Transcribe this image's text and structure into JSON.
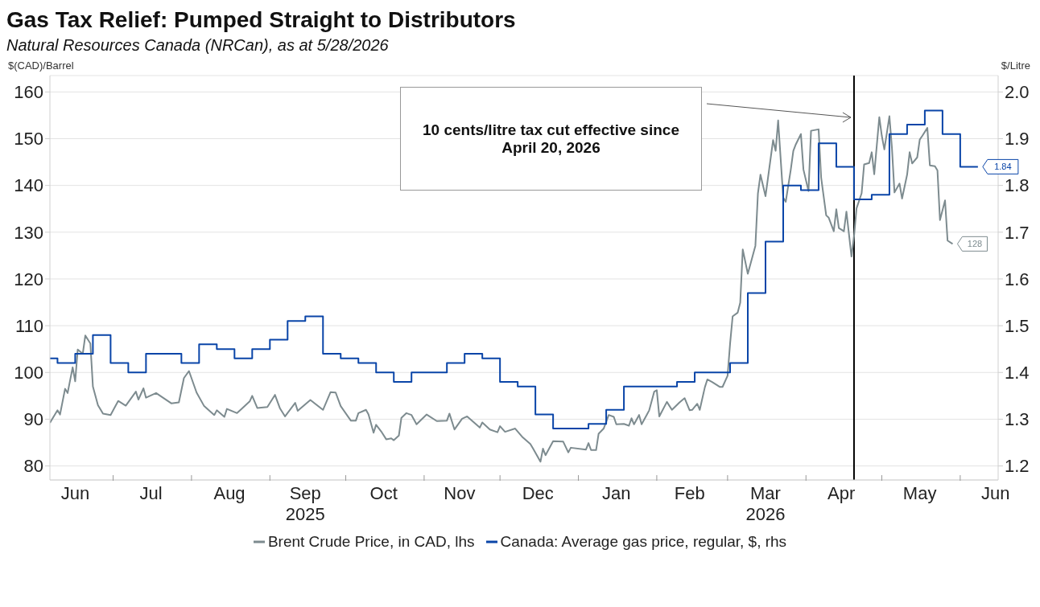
{
  "chart_data": {
    "type": "line",
    "title": "Gas Tax Relief: Pumped Straight to Distributors",
    "subtitle": "Natural Resources Canada (NRCan), as at 5/28/2026",
    "ylabel": "$(CAD)/Barrel",
    "y2label": "$/Litre",
    "annotations": [
      "10 cents/litre tax cut effective since April 20, 2026"
    ],
    "xlim": [
      "2025-06-06",
      "2026-06-16"
    ],
    "xticks": [
      {
        "value": "2025-06-16",
        "label": "Jun"
      },
      {
        "value": "2025-07-01",
        "label": null
      },
      {
        "value": "2025-07-16",
        "label": "Jul"
      },
      {
        "value": "2025-08-01",
        "label": null
      },
      {
        "value": "2025-08-16",
        "label": "Aug"
      },
      {
        "value": "2025-09-01",
        "label": null
      },
      {
        "value": "2025-09-15",
        "label": "Sep\n2025"
      },
      {
        "value": "2025-10-01",
        "label": null
      },
      {
        "value": "2025-10-16",
        "label": "Oct"
      },
      {
        "value": "2025-11-01",
        "label": null
      },
      {
        "value": "2025-11-15",
        "label": "Nov"
      },
      {
        "value": "2025-12-01",
        "label": null
      },
      {
        "value": "2025-12-16",
        "label": "Dec"
      },
      {
        "value": "2026-01-01",
        "label": null
      },
      {
        "value": "2026-01-16",
        "label": "Jan"
      },
      {
        "value": "2026-02-01",
        "label": null
      },
      {
        "value": "2026-02-14",
        "label": "Feb"
      },
      {
        "value": "2026-03-01",
        "label": null
      },
      {
        "value": "2026-03-16",
        "label": "Mar\n2026"
      },
      {
        "value": "2026-04-01",
        "label": null
      },
      {
        "value": "2026-04-15",
        "label": "Apr"
      },
      {
        "value": "2026-05-01",
        "label": null
      },
      {
        "value": "2026-05-16",
        "label": "May"
      },
      {
        "value": "2026-06-01",
        "label": null
      },
      {
        "value": "2026-06-15",
        "label": "Jun"
      }
    ],
    "ylim": [
      77,
      163.5
    ],
    "yticks": [
      80,
      90,
      100,
      110,
      120,
      130,
      140,
      150,
      160
    ],
    "y2lim": [
      1.17,
      2.035
    ],
    "y2ticks": [
      1.2,
      1.3,
      1.4,
      1.5,
      1.6,
      1.7,
      1.8,
      1.9,
      {
        "value": 2.0,
        "label": "2.0"
      }
    ],
    "grid": "y",
    "legend": "bottom",
    "ref_lines": [
      {
        "axis": "x",
        "value": "2026-04-20",
        "color": "#000000"
      }
    ],
    "series": [
      {
        "name": "Brent Crude Price, in CAD, lhs",
        "type": "line",
        "color": "#7d8b8f",
        "x": [
          "2025-06-06",
          "2025-06-09",
          "2025-06-10",
          "2025-06-12",
          "2025-06-13",
          "2025-06-15",
          "2025-06-16",
          "2025-06-17",
          "2025-06-19",
          "2025-06-20",
          "2025-06-22",
          "2025-06-23",
          "2025-06-25",
          "2025-06-27",
          "2025-06-30",
          "2025-07-03",
          "2025-07-06",
          "2025-07-10",
          "2025-07-11",
          "2025-07-13",
          "2025-07-14",
          "2025-07-18",
          "2025-07-24",
          "2025-07-27",
          "2025-07-29",
          "2025-07-31",
          "2025-08-03",
          "2025-08-06",
          "2025-08-10",
          "2025-08-11",
          "2025-08-14",
          "2025-08-15",
          "2025-08-19",
          "2025-08-24",
          "2025-08-25",
          "2025-08-27",
          "2025-08-31",
          "2025-09-03",
          "2025-09-05",
          "2025-09-07",
          "2025-09-11",
          "2025-09-12",
          "2025-09-17",
          "2025-09-22",
          "2025-09-25",
          "2025-09-27",
          "2025-09-29",
          "2025-10-03",
          "2025-10-05",
          "2025-10-06",
          "2025-10-09",
          "2025-10-10",
          "2025-10-12",
          "2025-10-13",
          "2025-10-15",
          "2025-10-17",
          "2025-10-19",
          "2025-10-20",
          "2025-10-22",
          "2025-10-23",
          "2025-10-25",
          "2025-10-27",
          "2025-10-29",
          "2025-11-02",
          "2025-11-06",
          "2025-11-10",
          "2025-11-11",
          "2025-11-13",
          "2025-11-16",
          "2025-11-18",
          "2025-11-23",
          "2025-11-24",
          "2025-11-27",
          "2025-11-30",
          "2025-12-01",
          "2025-12-03",
          "2025-12-07",
          "2025-12-10",
          "2025-12-13",
          "2025-12-14",
          "2025-12-17",
          "2025-12-18",
          "2025-12-19",
          "2025-12-22",
          "2025-12-26",
          "2025-12-28",
          "2025-12-29",
          "2026-01-04",
          "2026-01-05",
          "2026-01-06",
          "2026-01-08",
          "2026-01-09",
          "2026-01-11",
          "2026-01-13",
          "2026-01-15",
          "2026-01-16",
          "2026-01-19",
          "2026-01-21",
          "2026-01-22",
          "2026-01-23",
          "2026-01-25",
          "2026-01-26",
          "2026-01-28",
          "2026-01-29",
          "2026-01-31",
          "2026-02-01",
          "2026-02-02",
          "2026-02-05",
          "2026-02-07",
          "2026-02-10",
          "2026-02-12",
          "2026-02-14",
          "2026-02-15",
          "2026-02-17",
          "2026-02-18",
          "2026-02-20",
          "2026-02-21",
          "2026-02-23",
          "2026-02-26",
          "2026-02-27",
          "2026-03-01",
          "2026-03-02",
          "2026-03-03",
          "2026-03-05",
          "2026-03-06",
          "2026-03-07",
          "2026-03-09",
          "2026-03-10",
          "2026-03-12",
          "2026-03-13",
          "2026-03-14",
          "2026-03-16",
          "2026-03-17",
          "2026-03-19",
          "2026-03-20",
          "2026-03-21",
          "2026-03-23",
          "2026-03-24",
          "2026-03-26",
          "2026-03-27",
          "2026-03-28",
          "2026-03-30",
          "2026-03-31",
          "2026-04-02",
          "2026-04-03",
          "2026-04-06",
          "2026-04-07",
          "2026-04-09",
          "2026-04-10",
          "2026-04-12",
          "2026-04-13",
          "2026-04-14",
          "2026-04-16",
          "2026-04-17",
          "2026-04-19",
          "2026-04-20",
          "2026-04-21",
          "2026-04-23",
          "2026-04-24",
          "2026-04-26",
          "2026-04-27",
          "2026-04-28",
          "2026-04-30",
          "2026-05-01",
          "2026-05-02",
          "2026-05-04",
          "2026-05-05",
          "2026-05-06",
          "2026-05-08",
          "2026-05-09",
          "2026-05-11",
          "2026-05-12",
          "2026-05-13",
          "2026-05-15",
          "2026-05-16",
          "2026-05-17",
          "2026-05-19",
          "2026-05-20",
          "2026-05-22",
          "2026-05-23",
          "2026-05-24",
          "2026-05-26",
          "2026-05-27",
          "2026-05-29"
        ],
        "values": [
          89.2,
          91.9,
          91.0,
          96.5,
          95.6,
          101.1,
          98.1,
          104.9,
          104.0,
          107.9,
          106.2,
          97.0,
          93.0,
          91.2,
          90.9,
          93.9,
          92.9,
          95.9,
          94.2,
          96.6,
          94.6,
          95.6,
          93.4,
          93.6,
          98.8,
          100.3,
          95.7,
          92.8,
          90.9,
          91.9,
          90.5,
          92.2,
          91.3,
          93.8,
          95.0,
          92.4,
          92.6,
          95.2,
          92.3,
          90.6,
          93.5,
          91.8,
          94.1,
          92.0,
          95.8,
          95.7,
          92.8,
          89.7,
          89.7,
          91.3,
          92.0,
          91.0,
          87.1,
          88.8,
          87.4,
          85.7,
          85.9,
          85.5,
          86.5,
          90.3,
          91.3,
          90.9,
          88.9,
          91.0,
          89.6,
          89.7,
          91.2,
          87.8,
          90.1,
          90.6,
          88.2,
          89.3,
          87.8,
          87.2,
          88.5,
          87.3,
          88.0,
          86.1,
          84.7,
          83.8,
          80.9,
          83.7,
          82.3,
          85.3,
          85.2,
          82.9,
          83.9,
          83.5,
          84.9,
          83.4,
          83.4,
          86.9,
          88.0,
          90.9,
          90.5,
          88.9,
          89.0,
          88.6,
          90.2,
          88.9,
          90.9,
          88.9,
          90.9,
          91.9,
          95.9,
          96.2,
          90.6,
          93.7,
          92.0,
          93.6,
          94.5,
          91.9,
          92.0,
          93.3,
          92.0,
          96.8,
          98.5,
          97.9,
          96.9,
          96.9,
          99.3,
          106.2,
          112.0,
          112.8,
          114.9,
          126.3,
          121.1,
          123.1,
          127.1,
          138.3,
          142.3,
          137.7,
          141.7,
          149.7,
          147.4,
          153.9,
          137.4,
          136.5,
          143.4,
          147.4,
          148.8,
          151.0,
          143.4,
          138.8,
          151.7,
          152.0,
          141.7,
          133.6,
          133.1,
          130.2,
          134.9,
          130.9,
          130.2,
          134.4,
          124.8,
          129.1,
          135.1,
          138.3,
          144.5,
          144.8,
          147.1,
          142.4,
          154.6,
          150.6,
          147.7,
          154.8,
          148.0,
          138.5,
          140.4,
          137.2,
          142.3,
          147.1,
          144.7,
          146.0,
          149.8,
          150.6,
          152.3,
          144.3,
          144.1,
          143.2,
          132.6,
          136.8,
          128.2,
          127.5
        ],
        "value_labels": [
          null,
          null,
          null,
          null,
          null,
          null,
          null,
          null,
          null,
          null,
          null,
          null,
          null,
          null,
          null,
          null,
          null,
          null,
          null,
          null,
          null,
          null,
          null,
          null,
          null,
          null,
          null,
          null,
          null,
          null,
          null,
          null,
          null,
          null,
          null,
          null,
          null,
          null,
          null,
          null,
          null,
          null,
          null,
          null,
          null,
          null,
          null,
          null,
          null,
          null,
          null,
          null,
          null,
          null,
          null,
          null,
          null,
          null,
          null,
          null,
          null,
          null,
          null,
          null,
          null,
          null,
          null,
          null,
          null,
          null,
          null,
          null,
          null,
          null,
          null,
          null,
          null,
          null,
          null,
          null,
          null,
          null,
          null,
          null,
          null,
          null,
          null,
          null,
          null,
          null,
          null,
          null,
          null,
          null,
          null,
          null,
          null,
          null,
          null,
          null,
          null,
          null,
          null,
          null,
          null,
          null,
          null,
          null,
          null,
          null,
          null,
          null,
          null,
          null,
          null,
          null,
          null,
          null,
          null,
          null,
          null,
          null,
          null,
          null,
          null,
          null,
          null,
          null,
          null,
          null,
          null,
          null,
          null,
          null,
          null,
          null,
          null,
          null,
          null,
          null,
          null,
          null,
          null,
          null,
          null,
          null,
          null,
          null,
          null,
          null,
          null,
          null,
          null,
          null,
          null,
          null,
          null,
          null,
          null,
          null,
          null,
          null,
          null,
          null,
          null,
          null,
          null,
          null,
          null,
          null,
          null,
          null,
          null,
          null,
          null,
          null,
          null,
          null,
          null,
          null,
          null,
          null,
          null,
          "128"
        ]
      },
      {
        "name": "Canada: Average gas price, regular, $, rhs",
        "type": "step",
        "axis": "y2",
        "color": "#0a45a8",
        "x": [
          "2025-06-06",
          "2025-06-09",
          "2025-06-16",
          "2025-06-23",
          "2025-06-30",
          "2025-07-07",
          "2025-07-14",
          "2025-07-21",
          "2025-07-28",
          "2025-08-04",
          "2025-08-11",
          "2025-08-18",
          "2025-08-25",
          "2025-09-01",
          "2025-09-08",
          "2025-09-15",
          "2025-09-22",
          "2025-09-29",
          "2025-10-06",
          "2025-10-13",
          "2025-10-20",
          "2025-10-27",
          "2025-11-03",
          "2025-11-10",
          "2025-11-17",
          "2025-11-24",
          "2025-12-01",
          "2025-12-08",
          "2025-12-15",
          "2025-12-22",
          "2025-12-29",
          "2026-01-05",
          "2026-01-12",
          "2026-01-19",
          "2026-01-26",
          "2026-02-02",
          "2026-02-09",
          "2026-02-16",
          "2026-02-23",
          "2026-03-02",
          "2026-03-09",
          "2026-03-16",
          "2026-03-23",
          "2026-03-30",
          "2026-04-06",
          "2026-04-13",
          "2026-04-20",
          "2026-04-27",
          "2026-05-04",
          "2026-05-11",
          "2026-05-18",
          "2026-05-25",
          "2026-06-01",
          "2026-06-08"
        ],
        "values": [
          1.43,
          1.42,
          1.44,
          1.48,
          1.42,
          1.4,
          1.44,
          1.44,
          1.42,
          1.46,
          1.45,
          1.43,
          1.45,
          1.47,
          1.51,
          1.52,
          1.44,
          1.43,
          1.42,
          1.4,
          1.38,
          1.4,
          1.4,
          1.42,
          1.44,
          1.43,
          1.38,
          1.37,
          1.31,
          1.28,
          1.28,
          1.29,
          1.32,
          1.37,
          1.37,
          1.37,
          1.38,
          1.4,
          1.4,
          1.42,
          1.57,
          1.68,
          1.8,
          1.79,
          1.89,
          1.84,
          1.77,
          1.78,
          1.91,
          1.93,
          1.96,
          1.91,
          1.84,
          1.84
        ],
        "value_labels": [
          null,
          null,
          null,
          null,
          null,
          null,
          null,
          null,
          null,
          null,
          null,
          null,
          null,
          null,
          null,
          null,
          null,
          null,
          null,
          null,
          null,
          null,
          null,
          null,
          null,
          null,
          null,
          null,
          null,
          null,
          null,
          null,
          null,
          null,
          null,
          null,
          null,
          null,
          null,
          null,
          null,
          null,
          null,
          null,
          null,
          null,
          null,
          null,
          null,
          null,
          null,
          null,
          null,
          "1.84"
        ]
      }
    ]
  }
}
